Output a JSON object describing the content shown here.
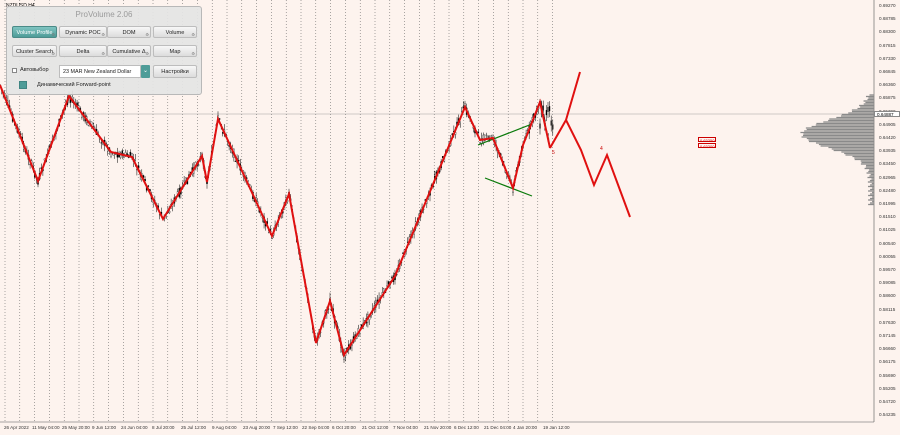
{
  "symbol_label": "NZDUSD,H4",
  "panel": {
    "title": "ProVolume 2.06",
    "buttons": [
      {
        "label": "Volume Profile",
        "active": true
      },
      {
        "label": "Dynamic POC",
        "active": false
      },
      {
        "label": "DOM",
        "active": false
      },
      {
        "label": "Volume",
        "active": false
      },
      {
        "label": "Cluster Search",
        "active": false
      },
      {
        "label": "Delta",
        "active": false
      },
      {
        "label": "Cumulative Δ",
        "active": false
      },
      {
        "label": "Map",
        "active": false
      }
    ],
    "auto_select_label": "Автовыбор",
    "contract_value": "23 MAR New Zealand Dollar",
    "settings_label": "Настройки",
    "forward_point_label": "Динамический Forward-point"
  },
  "price_axis": {
    "labels": [
      "0.69270",
      "0.68785",
      "0.68300",
      "0.67815",
      "0.67330",
      "0.66845",
      "0.66360",
      "0.65875",
      "0.65390",
      "0.64905",
      "0.64420",
      "0.63935",
      "0.63450",
      "0.62965",
      "0.62480",
      "0.61995",
      "0.61510",
      "0.61025",
      "0.60540",
      "0.60055",
      "0.59570",
      "0.59085",
      "0.58600",
      "0.58115",
      "0.57630",
      "0.57145",
      "0.56660",
      "0.56175",
      "0.55690",
      "0.55205",
      "0.54720",
      "0.54235"
    ],
    "current_price": "0.64887"
  },
  "date_axis": {
    "labels": [
      "26 Apr 2022",
      "11 May 04:00",
      "25 May 20:00",
      "9 Jun 12:00",
      "24 Jun 04:00",
      "8 Jul 20:00",
      "25 Jul 12:00",
      "9 Aug 04:00",
      "23 Aug 20:00",
      "7 Sep 12:00",
      "22 Sep 04:00",
      "6 Oct 20:00",
      "21 Oct 12:00",
      "7 Nov 04:00",
      "21 Nov 20:00",
      "6 Dec 12:00",
      "21 Dec 04:00",
      "4 Jan 20:00",
      "19 Jan 12:00"
    ]
  },
  "annotations": {
    "box_labels": [
      "0.63350",
      "0.63300"
    ],
    "wave_marks": [
      "5",
      "4"
    ]
  },
  "colors": {
    "background": "#fdf3ee",
    "zigzag": "#e01010",
    "candles": "#000000",
    "channel": "#0a7a0a",
    "profile": "#8a8a8a",
    "accent": "#4e9c98"
  }
}
